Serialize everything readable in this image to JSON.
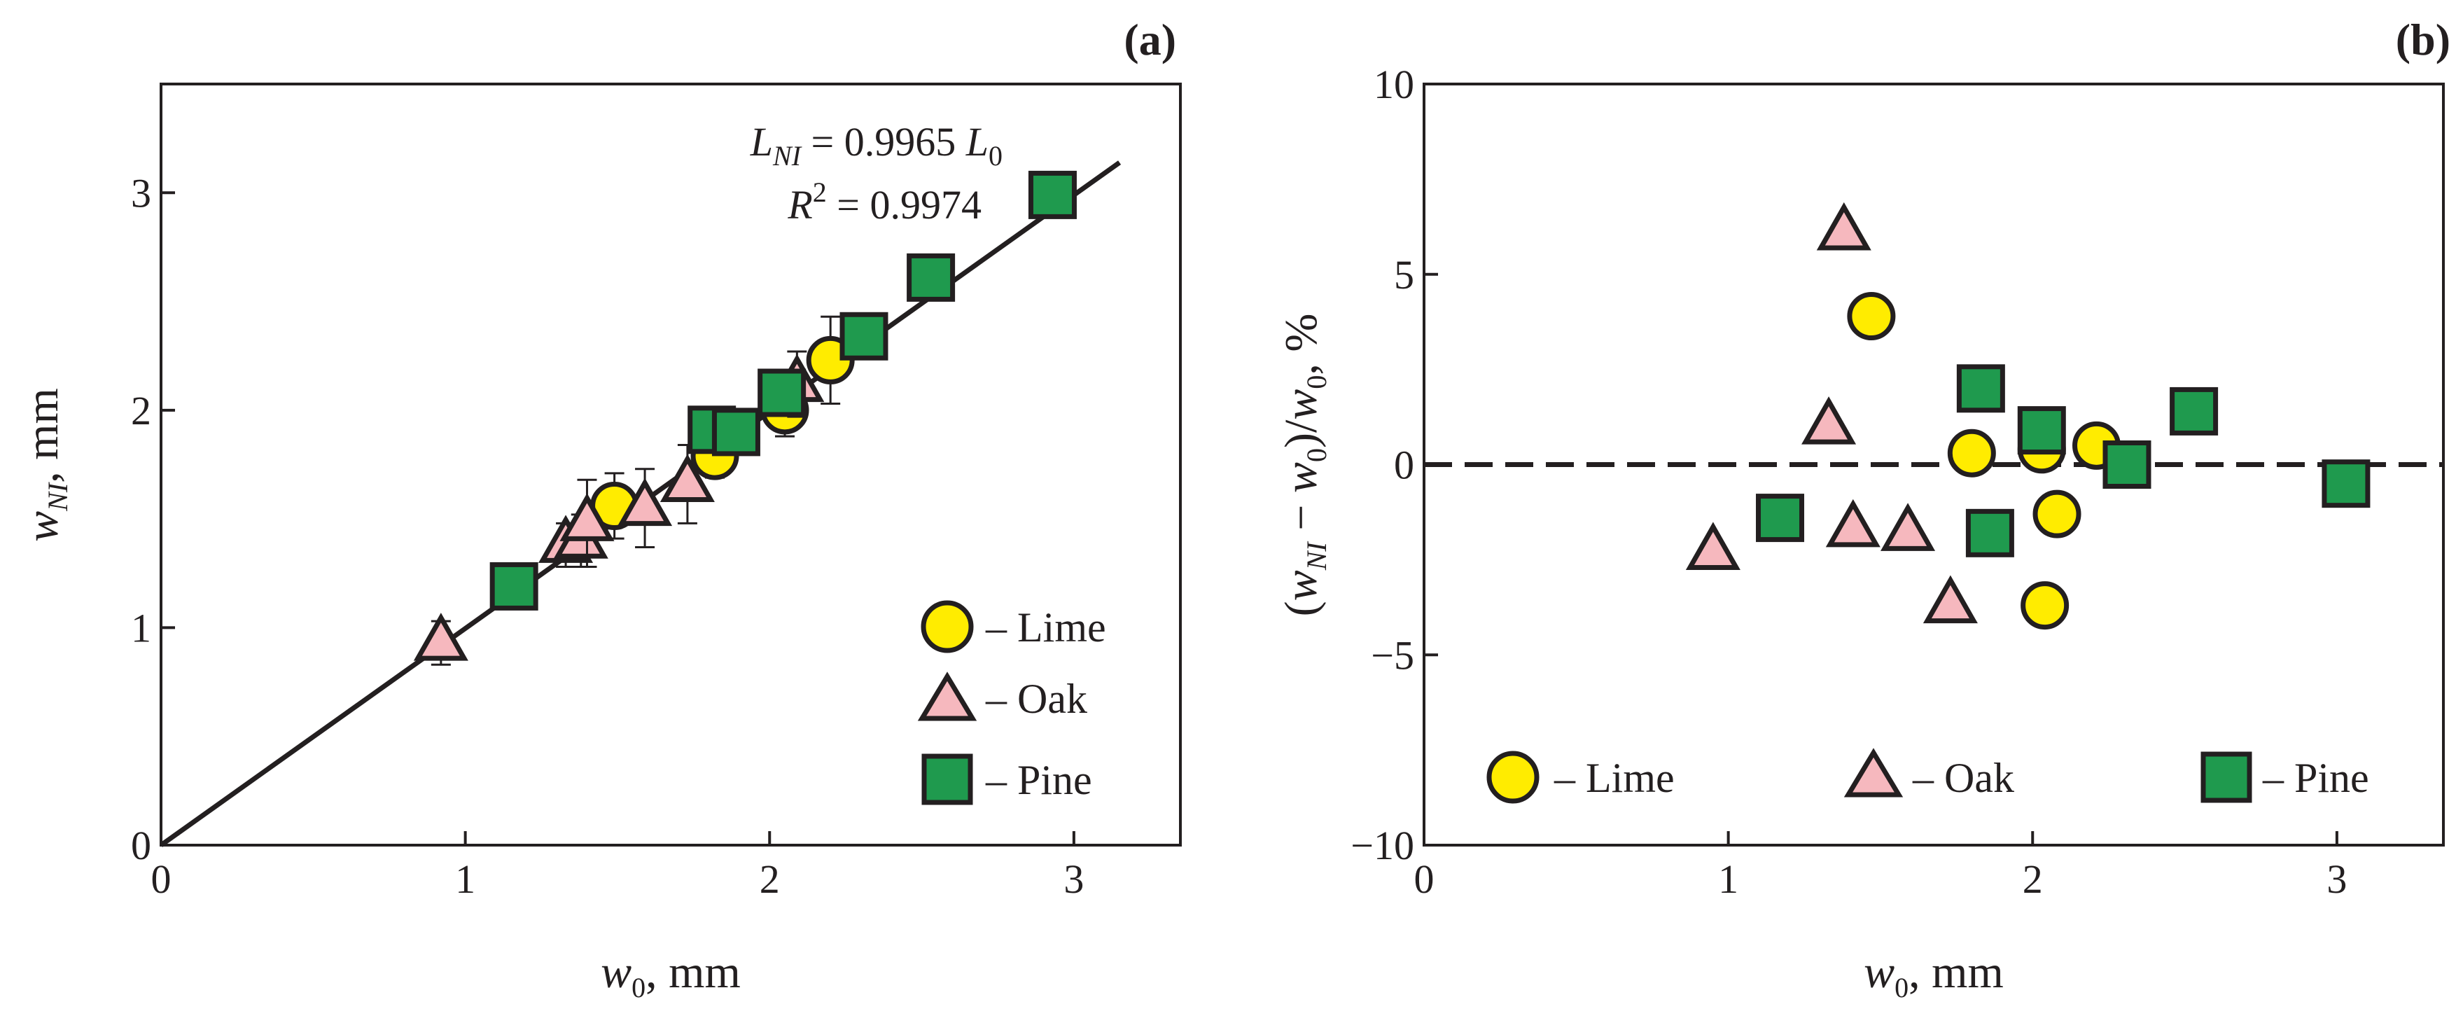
{
  "figure": {
    "colors": {
      "lime": "#ffec00",
      "oak": "#f6b8be",
      "pine": "#1f9a4e",
      "stroke": "#231f20"
    }
  },
  "chart_data": [
    {
      "panel": "a",
      "panel_label": "(a)",
      "type": "scatter",
      "xlabel": {
        "main": "w",
        "sub": "0",
        "unit": ", mm"
      },
      "ylabel": {
        "main": "w",
        "sub": "NI",
        "unit": ", mm"
      },
      "xlim": [
        0,
        3.35
      ],
      "ylim": [
        0,
        3.5
      ],
      "xticks": [
        0,
        1,
        2,
        3
      ],
      "yticks": [
        0,
        1,
        2,
        3
      ],
      "xtick_labels": [
        "0",
        "1",
        "2",
        "3"
      ],
      "ytick_labels": [
        "0",
        "1",
        "2",
        "3"
      ],
      "fit_line": {
        "slope": 0.9965,
        "x_range": [
          0,
          3.15
        ]
      },
      "annotation": {
        "line1": {
          "lhs": "L",
          "lhs_sub": "NI",
          "mid": " = 0.9965 ",
          "rhs": "L",
          "rhs_sub": "0"
        },
        "line2": {
          "lhs": "R",
          "sup": "2",
          "rest": " = 0.9974"
        }
      },
      "legend": {
        "position": "bottom-right",
        "entries": [
          {
            "series": "Lime",
            "label": "– Lime"
          },
          {
            "series": "Oak",
            "label": "– Oak"
          },
          {
            "series": "Pine",
            "label": "– Pine"
          }
        ]
      },
      "series": [
        {
          "name": "Lime",
          "marker": "circle",
          "points": [
            [
              1.49,
              1.56
            ],
            [
              1.82,
              1.79
            ],
            [
              2.05,
              2.0
            ],
            [
              2.2,
              2.23
            ]
          ],
          "errors": [
            0.15,
            0.1,
            0.12,
            0.2
          ]
        },
        {
          "name": "Oak",
          "marker": "triangle",
          "points": [
            [
              0.92,
              0.93
            ],
            [
              1.33,
              1.38
            ],
            [
              1.38,
              1.4
            ],
            [
              1.4,
              1.48
            ],
            [
              1.59,
              1.55
            ],
            [
              1.73,
              1.66
            ],
            [
              2.09,
              2.12
            ]
          ],
          "errors": [
            0.1,
            0.1,
            0.12,
            0.2,
            0.18,
            0.18,
            0.15
          ]
        },
        {
          "name": "Pine",
          "marker": "square",
          "points": [
            [
              1.16,
              1.19
            ],
            [
              1.81,
              1.91
            ],
            [
              1.89,
              1.9
            ],
            [
              2.04,
              2.08
            ],
            [
              2.31,
              2.34
            ],
            [
              2.53,
              2.61
            ],
            [
              2.93,
              2.99
            ]
          ],
          "errors": [
            0.06,
            0.06,
            0.05,
            0.05,
            0.05,
            0.05,
            0.05
          ]
        }
      ]
    },
    {
      "panel": "b",
      "panel_label": "(b)",
      "type": "scatter",
      "xlabel": {
        "main": "w",
        "sub": "0",
        "unit": ", mm"
      },
      "ylabel": {
        "open": "(",
        "main": "w",
        "sub": "NI",
        "mid": " − ",
        "main2": "w",
        "sub2": "0",
        "close": ")/",
        "main3": "w",
        "sub3": "0",
        "unit": ", %"
      },
      "xlim": [
        0,
        3.35
      ],
      "ylim": [
        -10,
        10
      ],
      "xticks": [
        0,
        1,
        2,
        3
      ],
      "yticks": [
        -10,
        -5,
        0,
        5,
        10
      ],
      "xtick_labels": [
        "0",
        "1",
        "2",
        "3"
      ],
      "ytick_labels": [
        "−10",
        "−5",
        "0",
        "5",
        "10"
      ],
      "reference_line": {
        "y": 0,
        "style": "dashed"
      },
      "legend": {
        "position": "bottom",
        "entries": [
          {
            "series": "Lime",
            "label": "– Lime"
          },
          {
            "series": "Oak",
            "label": "– Oak"
          },
          {
            "series": "Pine",
            "label": "– Pine"
          }
        ]
      },
      "series": [
        {
          "name": "Lime",
          "marker": "circle",
          "points": [
            [
              1.47,
              3.9
            ],
            [
              1.8,
              0.3
            ],
            [
              2.03,
              0.4
            ],
            [
              2.21,
              0.5
            ],
            [
              2.08,
              -1.3
            ],
            [
              2.04,
              -3.7
            ]
          ]
        },
        {
          "name": "Oak",
          "marker": "triangle",
          "points": [
            [
              1.38,
              6.1
            ],
            [
              1.33,
              1.0
            ],
            [
              0.95,
              -2.3
            ],
            [
              1.41,
              -1.7
            ],
            [
              1.59,
              -1.8
            ],
            [
              1.73,
              -3.7
            ]
          ]
        },
        {
          "name": "Pine",
          "marker": "square",
          "points": [
            [
              1.83,
              2.0
            ],
            [
              2.03,
              0.9
            ],
            [
              2.53,
              1.4
            ],
            [
              2.31,
              0.0
            ],
            [
              3.03,
              -0.5
            ],
            [
              1.17,
              -1.4
            ],
            [
              1.86,
              -1.8
            ]
          ]
        }
      ]
    }
  ]
}
